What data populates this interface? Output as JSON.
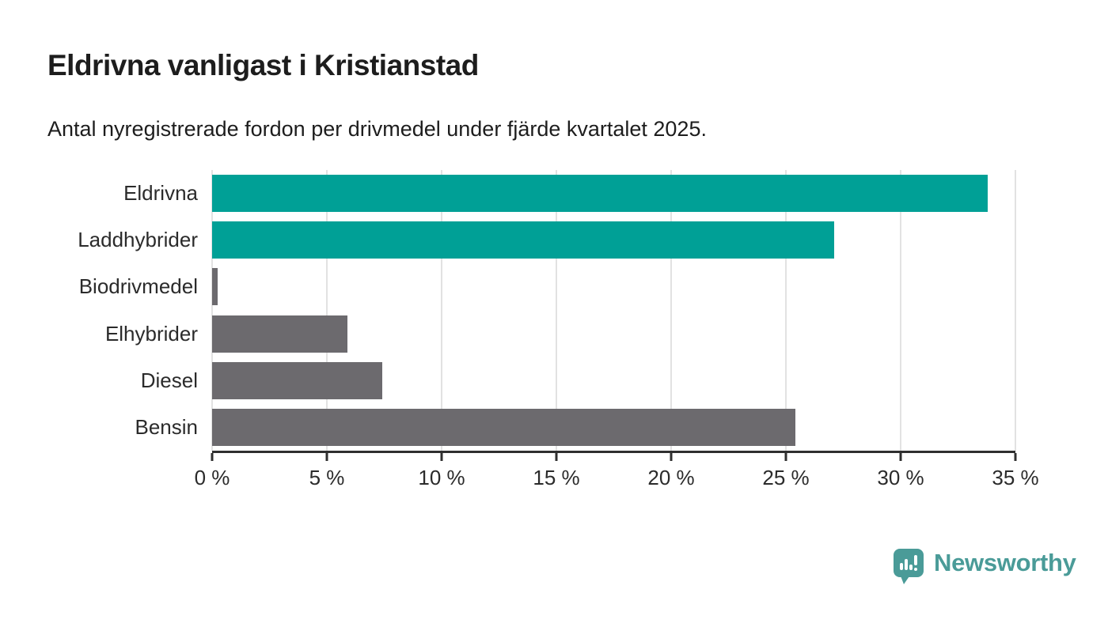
{
  "chart_data": {
    "type": "bar",
    "orientation": "horizontal",
    "title": "Eldrivna vanligast i Kristianstad",
    "subtitle": "Antal nyregistrerade fordon per drivmedel under fjärde kvartalet 2025.",
    "categories": [
      "Eldrivna",
      "Laddhybrider",
      "Biodrivmedel",
      "Elhybrider",
      "Diesel",
      "Bensin"
    ],
    "values": [
      33.8,
      27.1,
      0.25,
      5.9,
      7.4,
      25.4
    ],
    "unit": "%",
    "bar_colors": [
      "#00a096",
      "#00a096",
      "#6c6a6e",
      "#6c6a6e",
      "#6c6a6e",
      "#6c6a6e"
    ],
    "xlabel": "",
    "ylabel": "",
    "xlim": [
      0,
      35
    ],
    "xticks": [
      0,
      5,
      10,
      15,
      20,
      25,
      30,
      35
    ],
    "xtick_labels": [
      "0 %",
      "5 %",
      "10 %",
      "15 %",
      "20 %",
      "25 %",
      "30 %",
      "35 %"
    ],
    "grid": "vertical gridlines on",
    "legend": "none"
  },
  "colors": {
    "teal": "#00a096",
    "gray": "#6c6a6e",
    "gridline": "#e2e2e2",
    "axis": "#2f2f2f",
    "title_text": "#1d1d1d",
    "label_text": "#2b2b2b",
    "logo_teal": "#4a9b98"
  },
  "footer": {
    "logo_text": "Newsworthy"
  }
}
